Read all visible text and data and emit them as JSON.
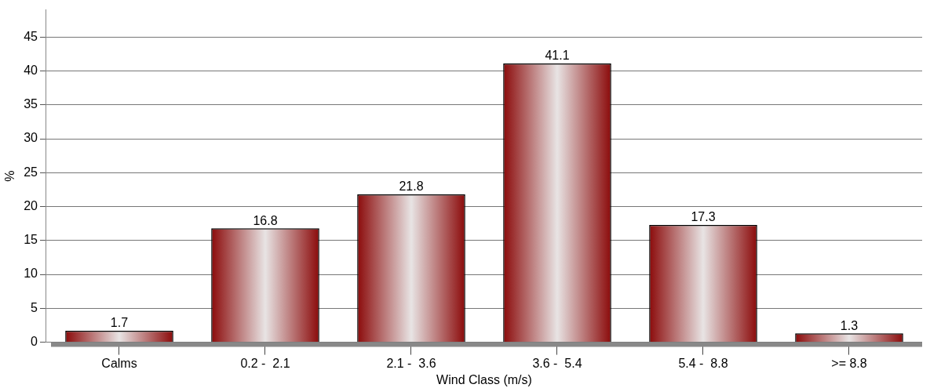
{
  "chart_data": {
    "type": "bar",
    "xlabel": "Wind Class (m/s)",
    "ylabel": "%",
    "categories": [
      "Calms",
      "0.2 -  2.1",
      "2.1 -  3.6",
      "3.6 -  5.4",
      "5.4 -  8.8",
      ">= 8.8"
    ],
    "values": [
      1.7,
      16.8,
      21.8,
      41.1,
      17.3,
      1.3
    ],
    "color": "#8b0a0a",
    "ylim": [
      0,
      49
    ],
    "yticks": [
      0,
      5,
      10,
      15,
      20,
      25,
      30,
      35,
      40,
      45
    ],
    "grid": "y",
    "legend": false,
    "data_labels": true
  }
}
